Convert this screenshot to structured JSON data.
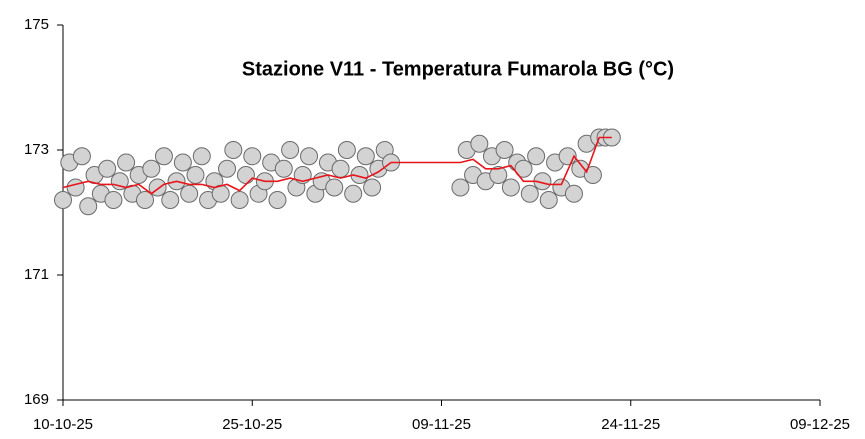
{
  "chart_data": {
    "type": "scatter",
    "title": "Stazione V11 - Temperatura Fumarola BG (°C)",
    "xlim": [
      0,
      60
    ],
    "xticks": [
      {
        "value": 0,
        "label": "10-10-25"
      },
      {
        "value": 15,
        "label": "25-10-25"
      },
      {
        "value": 30,
        "label": "09-11-25"
      },
      {
        "value": 45,
        "label": "24-11-25"
      },
      {
        "value": 60,
        "label": "09-12-25"
      }
    ],
    "ylim": [
      169,
      175
    ],
    "yticks": [
      169,
      171,
      173,
      175
    ],
    "series": [
      {
        "color": "#d3d3d3",
        "x": [
          0,
          0.5,
          1,
          1.5,
          2,
          2.5,
          3,
          3.5,
          4,
          4.5,
          5,
          5.5,
          6,
          6.5,
          7,
          7.5,
          8,
          8.5,
          9,
          9.5,
          10,
          10.5,
          11,
          11.5,
          12,
          12.5,
          13,
          13.5,
          14,
          14.5,
          15,
          15.5,
          16,
          16.5,
          17,
          17.5,
          18,
          18.5,
          19,
          19.5,
          20,
          20.5,
          21,
          21.5,
          22,
          22.5,
          23,
          23.5,
          24,
          24.5,
          25,
          25.5,
          26,
          31.5,
          32,
          32.5,
          33,
          33.5,
          34,
          34.5,
          35,
          35.5,
          36,
          36.5,
          37,
          37.5,
          38,
          38.5,
          39,
          39.5,
          40,
          40.5,
          41,
          41.5,
          42,
          42.5,
          43,
          43.5
        ],
        "values": [
          172.2,
          172.8,
          172.4,
          172.9,
          172.1,
          172.6,
          172.3,
          172.7,
          172.2,
          172.5,
          172.8,
          172.3,
          172.6,
          172.2,
          172.7,
          172.4,
          172.9,
          172.2,
          172.5,
          172.8,
          172.3,
          172.6,
          172.9,
          172.2,
          172.5,
          172.3,
          172.7,
          173.0,
          172.2,
          172.6,
          172.9,
          172.3,
          172.5,
          172.8,
          172.2,
          172.7,
          173.0,
          172.4,
          172.6,
          172.9,
          172.3,
          172.5,
          172.8,
          172.4,
          172.7,
          173.0,
          172.3,
          172.6,
          172.9,
          172.4,
          172.7,
          173.0,
          172.8,
          172.4,
          173.0,
          172.6,
          173.1,
          172.5,
          172.9,
          172.6,
          173.0,
          172.4,
          172.8,
          172.7,
          172.3,
          172.9,
          172.5,
          172.2,
          172.8,
          172.4,
          172.9,
          172.3,
          172.7,
          173.1,
          172.6,
          173.2,
          173.2,
          173.2
        ]
      },
      {
        "type": "line",
        "color": "#e8151b",
        "x": [
          0,
          1,
          2,
          3,
          4,
          5,
          6,
          7,
          8,
          9,
          10,
          11,
          12,
          13,
          14,
          15,
          16,
          17,
          18,
          19,
          20,
          21,
          22,
          23,
          24,
          25,
          26,
          31.5,
          32.5,
          33.5,
          34.5,
          35.5,
          36.5,
          37.5,
          38.5,
          39.5,
          40.5,
          41.5,
          42.5,
          43.5
        ],
        "values": [
          172.4,
          172.45,
          172.5,
          172.45,
          172.45,
          172.4,
          172.45,
          172.3,
          172.45,
          172.5,
          172.45,
          172.45,
          172.4,
          172.45,
          172.35,
          172.55,
          172.5,
          172.5,
          172.55,
          172.5,
          172.55,
          172.6,
          172.55,
          172.6,
          172.55,
          172.65,
          172.8,
          172.8,
          172.85,
          172.7,
          172.7,
          172.75,
          172.5,
          172.5,
          172.45,
          172.45,
          172.9,
          172.65,
          173.2,
          173.2
        ]
      }
    ]
  }
}
